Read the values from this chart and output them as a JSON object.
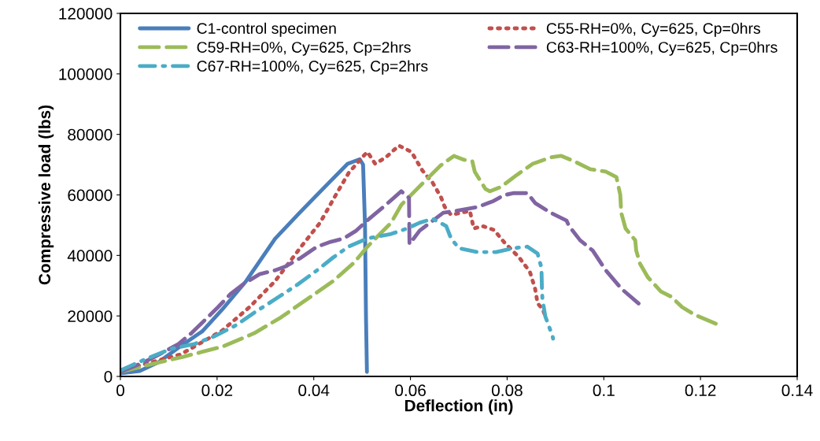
{
  "chart_data": {
    "type": "line",
    "xlabel": "Deflection (in)",
    "ylabel": "Compressive load (lbs)",
    "xlim": [
      0,
      0.14
    ],
    "xticks": [
      0,
      0.02,
      0.04,
      0.06,
      0.08,
      0.1,
      0.12,
      0.14
    ],
    "ylim": [
      0,
      120000
    ],
    "yticks": [
      0,
      20000,
      40000,
      60000,
      80000,
      100000,
      120000
    ],
    "grid": false,
    "legend": "top",
    "marker": "none",
    "series": [
      {
        "name": "C1-control specimen",
        "color": "#4a7ebb",
        "line_style": "solid",
        "x": [
          0,
          0.004,
          0.008,
          0.012,
          0.017,
          0.021,
          0.026,
          0.032,
          0.037,
          0.043,
          0.047,
          0.0495,
          0.0502,
          0.0506,
          0.0508,
          0.051
        ],
        "values": [
          1000,
          1800,
          4800,
          9500,
          15000,
          22000,
          31500,
          45500,
          54000,
          63800,
          70300,
          71800,
          70000,
          50000,
          20000,
          1500
        ]
      },
      {
        "name": "C55-RH=0%, Cy=625, Cp=0hrs",
        "color": "#c0504d",
        "line_style": "dotted",
        "x": [
          0,
          0.006,
          0.0125,
          0.021,
          0.0267,
          0.032,
          0.0374,
          0.0413,
          0.0446,
          0.0472,
          0.05,
          0.0511,
          0.0527,
          0.0549,
          0.0576,
          0.0602,
          0.0625,
          0.0646,
          0.0663,
          0.0671,
          0.0684,
          0.0723,
          0.0731,
          0.0749,
          0.0773,
          0.0793,
          0.0825,
          0.0847,
          0.0858,
          0.0863,
          0.0874,
          0.0878
        ],
        "values": [
          2000,
          4500,
          7300,
          15100,
          22900,
          31500,
          42900,
          50800,
          60100,
          67200,
          72400,
          74200,
          70300,
          72400,
          76300,
          74200,
          68000,
          64000,
          59300,
          56000,
          53400,
          54700,
          48900,
          49700,
          48400,
          44500,
          39300,
          34600,
          28900,
          24200,
          22100,
          20300
        ]
      },
      {
        "name": "C59-RH=0%, Cy=625, Cp=2hrs",
        "color": "#9bbb59",
        "line_style": "dashed",
        "x": [
          0,
          0.006,
          0.013,
          0.0212,
          0.0277,
          0.0332,
          0.0386,
          0.044,
          0.0484,
          0.0511,
          0.0537,
          0.056,
          0.0581,
          0.0602,
          0.063,
          0.0663,
          0.069,
          0.0711,
          0.0728,
          0.0733,
          0.0755,
          0.0764,
          0.0788,
          0.082,
          0.0853,
          0.089,
          0.0912,
          0.0939,
          0.0972,
          0.1004,
          0.1026,
          0.1034,
          0.1036,
          0.1045,
          0.1065,
          0.1067,
          0.1075,
          0.1091,
          0.1118,
          0.114,
          0.1162,
          0.1189,
          0.1235
        ],
        "values": [
          1500,
          3900,
          6500,
          9900,
          14300,
          19500,
          25500,
          31500,
          37700,
          42900,
          47100,
          50800,
          56700,
          60100,
          64600,
          69800,
          72900,
          71600,
          71100,
          67700,
          62000,
          61200,
          62700,
          66600,
          70300,
          72400,
          72900,
          71100,
          68500,
          67700,
          65900,
          60100,
          54100,
          48900,
          45000,
          41600,
          37200,
          32800,
          28100,
          26300,
          22900,
          20300,
          17200
        ]
      },
      {
        "name": "C63-RH=100%, Cy=625, Cp=0hrs",
        "color": "#8064a2",
        "line_style": "dashed",
        "x": [
          0,
          0.0049,
          0.0081,
          0.012,
          0.0147,
          0.0174,
          0.0202,
          0.0228,
          0.0256,
          0.0288,
          0.032,
          0.0342,
          0.0374,
          0.0407,
          0.0435,
          0.0462,
          0.0488,
          0.0516,
          0.0549,
          0.0581,
          0.0597,
          0.0598,
          0.0619,
          0.0668,
          0.07,
          0.0739,
          0.0772,
          0.0793,
          0.0814,
          0.0842,
          0.0858,
          0.089,
          0.0923,
          0.0928,
          0.0951,
          0.0977,
          0.1004,
          0.1037,
          0.1075,
          0.1081
        ],
        "values": [
          1500,
          4700,
          7300,
          10700,
          14300,
          18500,
          22900,
          27300,
          30700,
          33800,
          35100,
          36400,
          39300,
          42900,
          44500,
          45600,
          48200,
          52300,
          56700,
          61200,
          59000,
          43700,
          48200,
          54100,
          54900,
          56000,
          58000,
          59900,
          60600,
          60600,
          57300,
          54100,
          51500,
          49700,
          45000,
          41600,
          35100,
          28900,
          23700,
          22900
        ]
      },
      {
        "name": "C67-RH=100%, Cy=625, Cp=2hrs",
        "color": "#4bacc6",
        "line_style": "dashdot",
        "x": [
          0,
          0.0049,
          0.0104,
          0.0153,
          0.0195,
          0.0239,
          0.0277,
          0.032,
          0.0365,
          0.0407,
          0.044,
          0.0472,
          0.0511,
          0.056,
          0.0593,
          0.0619,
          0.0646,
          0.0674,
          0.0684,
          0.07,
          0.0739,
          0.0777,
          0.0814,
          0.0842,
          0.0863,
          0.0871,
          0.0872,
          0.0873,
          0.0879,
          0.0894,
          0.0895
        ],
        "values": [
          2000,
          5500,
          9100,
          10700,
          13300,
          16900,
          21100,
          25500,
          30200,
          35100,
          39300,
          42900,
          45600,
          47100,
          48900,
          50800,
          52100,
          49700,
          45600,
          42400,
          41100,
          41100,
          42400,
          42900,
          40600,
          35900,
          28900,
          25500,
          19800,
          13300,
          12500
        ]
      }
    ]
  }
}
